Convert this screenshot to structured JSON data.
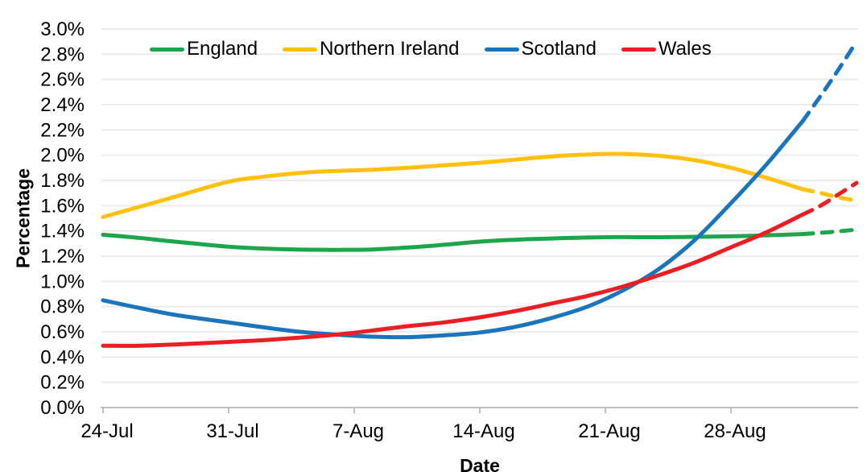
{
  "chart_data": {
    "type": "line",
    "title": "",
    "xlabel": "Date",
    "ylabel": "Percentage",
    "x_tick_labels": [
      "24-Jul",
      "31-Jul",
      "7-Aug",
      "14-Aug",
      "21-Aug",
      "28-Aug"
    ],
    "x_tick_days": [
      0,
      7,
      14,
      21,
      28,
      35
    ],
    "x_domain_days": [
      0,
      42
    ],
    "ylim": [
      0.0,
      3.0
    ],
    "y_tick_step": 0.2,
    "y_tick_labels": [
      "0.0%",
      "0.2%",
      "0.4%",
      "0.6%",
      "0.8%",
      "1.0%",
      "1.2%",
      "1.4%",
      "1.6%",
      "1.8%",
      "2.0%",
      "2.2%",
      "2.4%",
      "2.6%",
      "2.8%",
      "3.0%"
    ],
    "grid": true,
    "legend_position": "top",
    "series": [
      {
        "name": "England",
        "color": "#1BA64C",
        "solid": [
          [
            0,
            1.37
          ],
          [
            2,
            1.345
          ],
          [
            4,
            1.315
          ],
          [
            7,
            1.275
          ],
          [
            9,
            1.26
          ],
          [
            11,
            1.252
          ],
          [
            13,
            1.25
          ],
          [
            15,
            1.253
          ],
          [
            17,
            1.268
          ],
          [
            19,
            1.29
          ],
          [
            21,
            1.315
          ],
          [
            23,
            1.33
          ],
          [
            25,
            1.34
          ],
          [
            28,
            1.35
          ],
          [
            31,
            1.35
          ],
          [
            33,
            1.353
          ],
          [
            35,
            1.357
          ],
          [
            37,
            1.365
          ],
          [
            39,
            1.375
          ]
        ],
        "forecast_dashed": [
          [
            39,
            1.375
          ],
          [
            40.5,
            1.39
          ],
          [
            42,
            1.41
          ]
        ]
      },
      {
        "name": "Northern Ireland",
        "color": "#FFC10E",
        "solid": [
          [
            0,
            1.51
          ],
          [
            2,
            1.59
          ],
          [
            4,
            1.67
          ],
          [
            7,
            1.79
          ],
          [
            9,
            1.83
          ],
          [
            11,
            1.86
          ],
          [
            13,
            1.875
          ],
          [
            15,
            1.885
          ],
          [
            17,
            1.9
          ],
          [
            19,
            1.92
          ],
          [
            21,
            1.94
          ],
          [
            23,
            1.965
          ],
          [
            25,
            1.99
          ],
          [
            27,
            2.005
          ],
          [
            29,
            2.01
          ],
          [
            31,
            1.995
          ],
          [
            33,
            1.96
          ],
          [
            35,
            1.9
          ],
          [
            37,
            1.82
          ],
          [
            39,
            1.73
          ]
        ],
        "forecast_dashed": [
          [
            39,
            1.73
          ],
          [
            40,
            1.7
          ],
          [
            41,
            1.665
          ],
          [
            42,
            1.64
          ]
        ]
      },
      {
        "name": "Scotland",
        "color": "#1B75BC",
        "solid": [
          [
            0,
            0.85
          ],
          [
            2,
            0.79
          ],
          [
            4,
            0.735
          ],
          [
            7,
            0.675
          ],
          [
            9,
            0.635
          ],
          [
            11,
            0.6
          ],
          [
            13,
            0.578
          ],
          [
            15,
            0.562
          ],
          [
            17,
            0.558
          ],
          [
            19,
            0.572
          ],
          [
            21,
            0.595
          ],
          [
            23,
            0.64
          ],
          [
            25,
            0.71
          ],
          [
            27,
            0.8
          ],
          [
            29,
            0.93
          ],
          [
            31,
            1.1
          ],
          [
            33,
            1.33
          ],
          [
            35,
            1.62
          ],
          [
            37,
            1.93
          ],
          [
            39,
            2.27
          ]
        ],
        "forecast_dashed": [
          [
            39,
            2.27
          ],
          [
            40,
            2.47
          ],
          [
            41,
            2.68
          ],
          [
            42,
            2.9
          ]
        ]
      },
      {
        "name": "Wales",
        "color": "#EC1E24",
        "solid": [
          [
            0,
            0.49
          ],
          [
            2,
            0.49
          ],
          [
            4,
            0.5
          ],
          [
            7,
            0.52
          ],
          [
            9,
            0.535
          ],
          [
            11,
            0.555
          ],
          [
            13,
            0.578
          ],
          [
            15,
            0.61
          ],
          [
            17,
            0.645
          ],
          [
            19,
            0.675
          ],
          [
            21,
            0.715
          ],
          [
            23,
            0.765
          ],
          [
            25,
            0.825
          ],
          [
            27,
            0.885
          ],
          [
            29,
            0.96
          ],
          [
            31,
            1.05
          ],
          [
            33,
            1.15
          ],
          [
            35,
            1.27
          ],
          [
            37,
            1.39
          ],
          [
            39,
            1.53
          ]
        ],
        "forecast_dashed": [
          [
            39,
            1.53
          ],
          [
            40,
            1.6
          ],
          [
            41,
            1.69
          ],
          [
            42,
            1.78
          ]
        ]
      }
    ]
  },
  "colors": {
    "background": "#FFFFFF",
    "gridline": "#ECECEC",
    "axis": "#BFBFBF",
    "text": "#000000"
  }
}
